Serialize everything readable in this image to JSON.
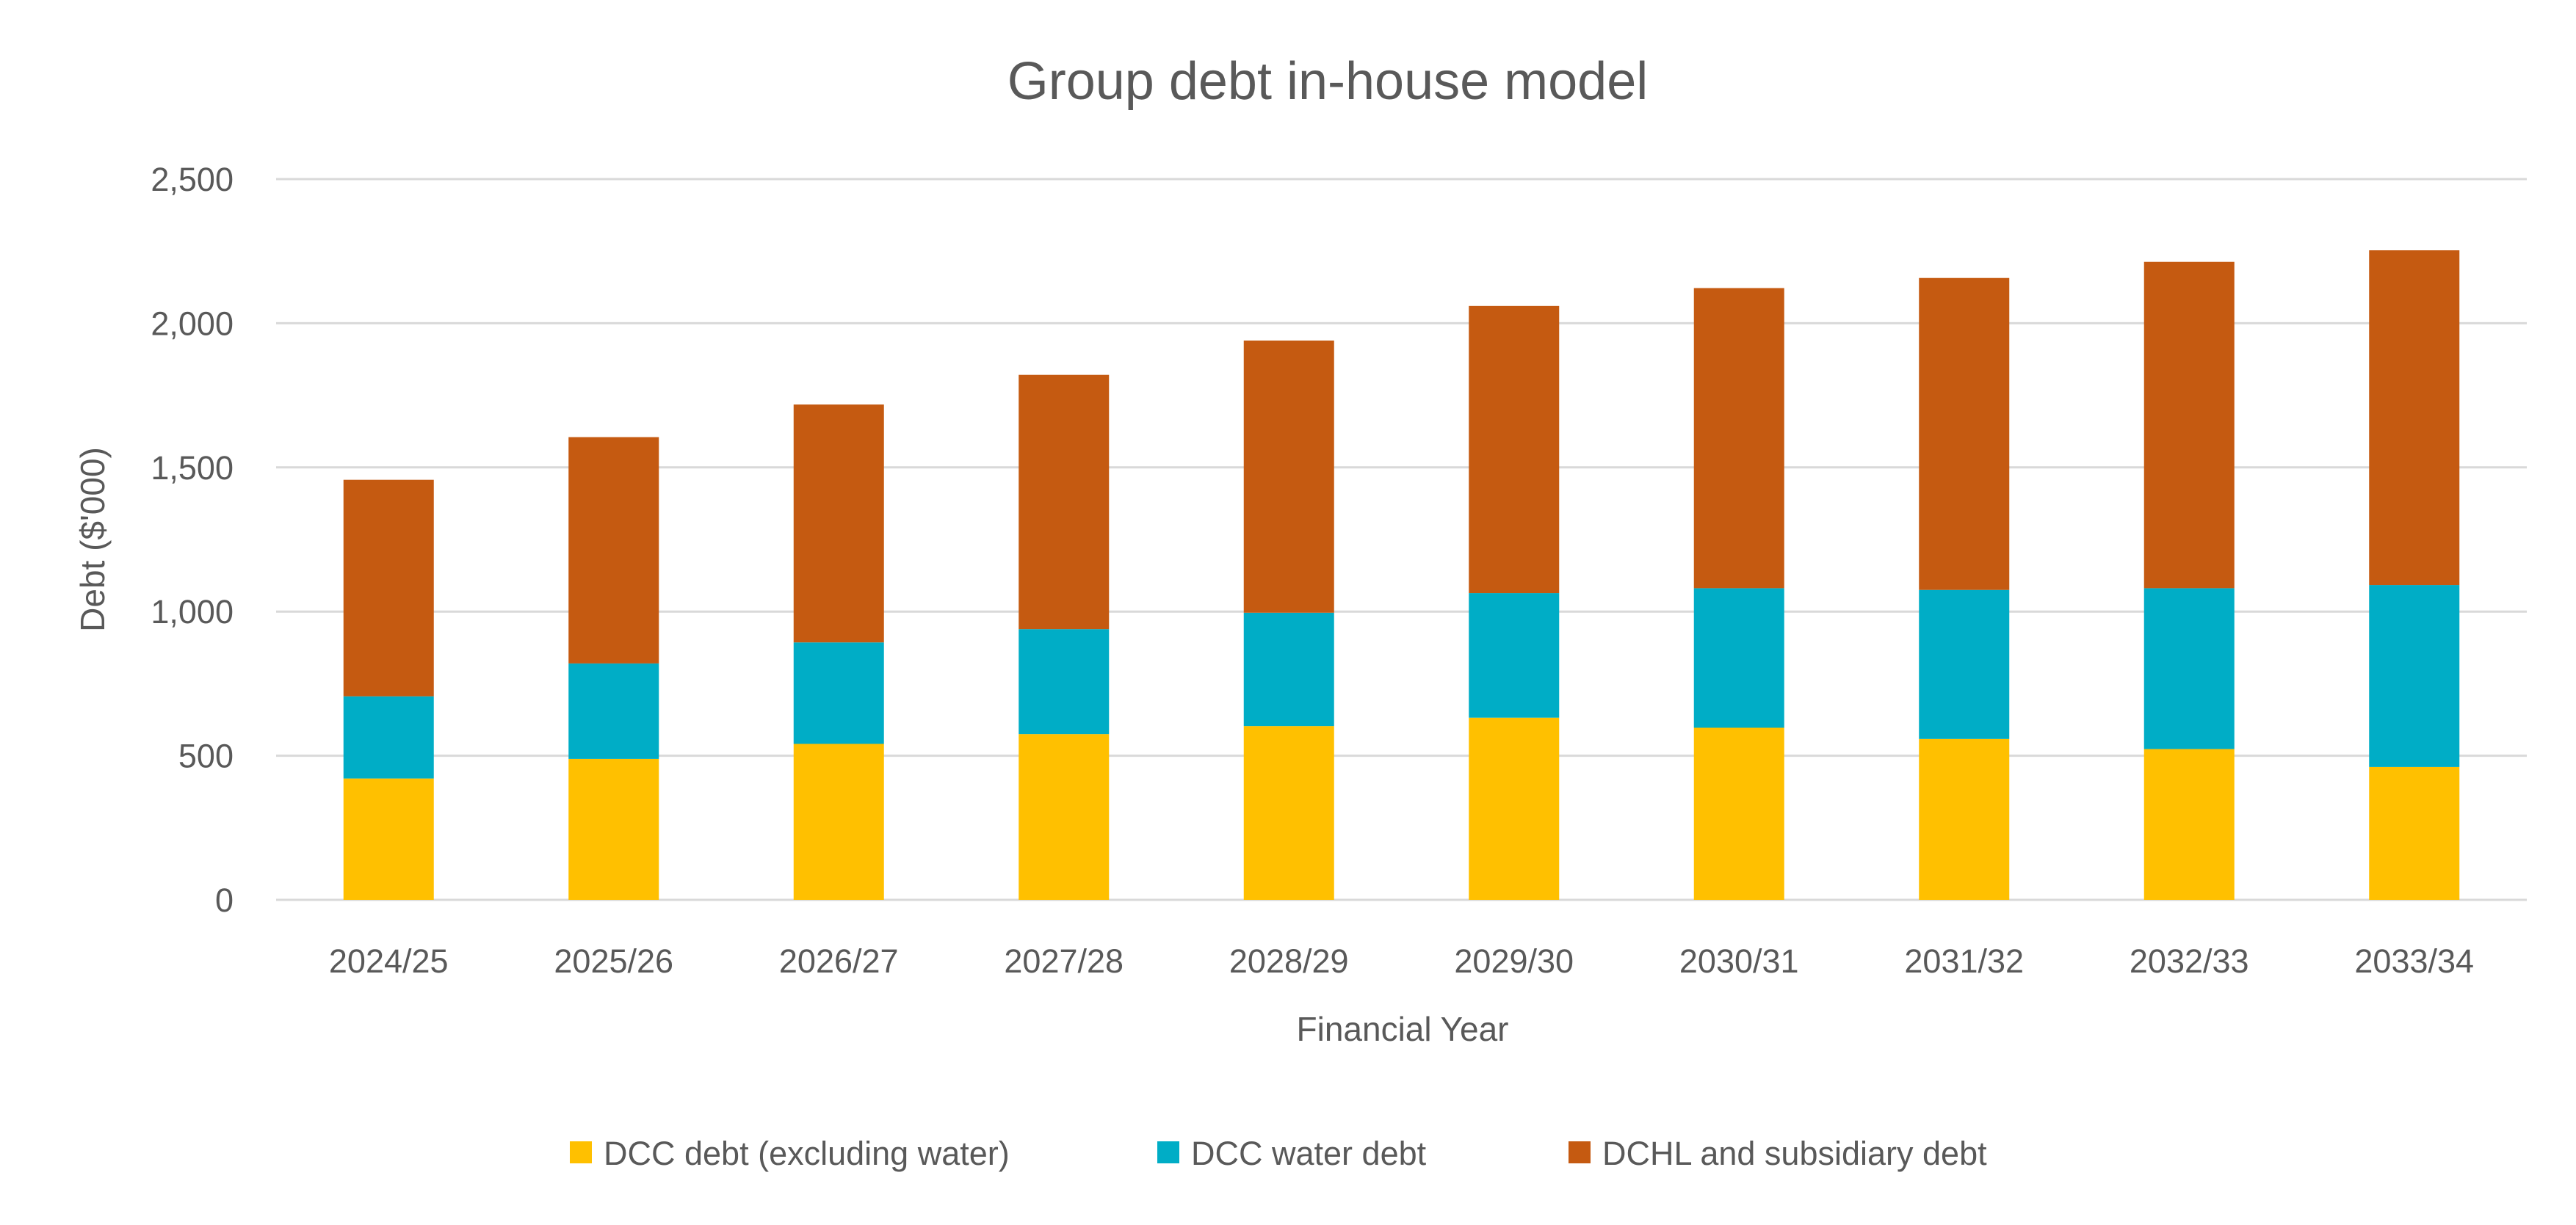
{
  "chart_data": {
    "type": "bar",
    "stacked": true,
    "title": "Group debt in-house model",
    "xlabel": "Financial Year",
    "ylabel": "Debt ($'000)",
    "ylim": [
      0,
      2500
    ],
    "yticks": [
      0,
      500,
      1000,
      1500,
      2000,
      2500
    ],
    "ytick_labels": [
      "0",
      "500",
      "1,000",
      "1,500",
      "2,000",
      "2,500"
    ],
    "grid": true,
    "legend_position": "bottom",
    "categories": [
      "2024/25",
      "2025/26",
      "2026/27",
      "2027/28",
      "2028/29",
      "2029/30",
      "2030/31",
      "2031/32",
      "2032/33",
      "2033/34"
    ],
    "series": [
      {
        "name": "DCC debt (excluding water)",
        "color": "#FFC000",
        "values": [
          421,
          489,
          541,
          575,
          603,
          632,
          597,
          558,
          523,
          461
        ]
      },
      {
        "name": "DCC water debt",
        "color": "#00ADC6",
        "values": [
          285,
          331,
          352,
          364,
          393,
          432,
          484,
          517,
          558,
          631
        ]
      },
      {
        "name": "DCHL and subsidiary debt",
        "color": "#C55A11",
        "values": [
          751,
          785,
          825,
          882,
          944,
          996,
          1041,
          1082,
          1132,
          1161
        ]
      }
    ]
  }
}
